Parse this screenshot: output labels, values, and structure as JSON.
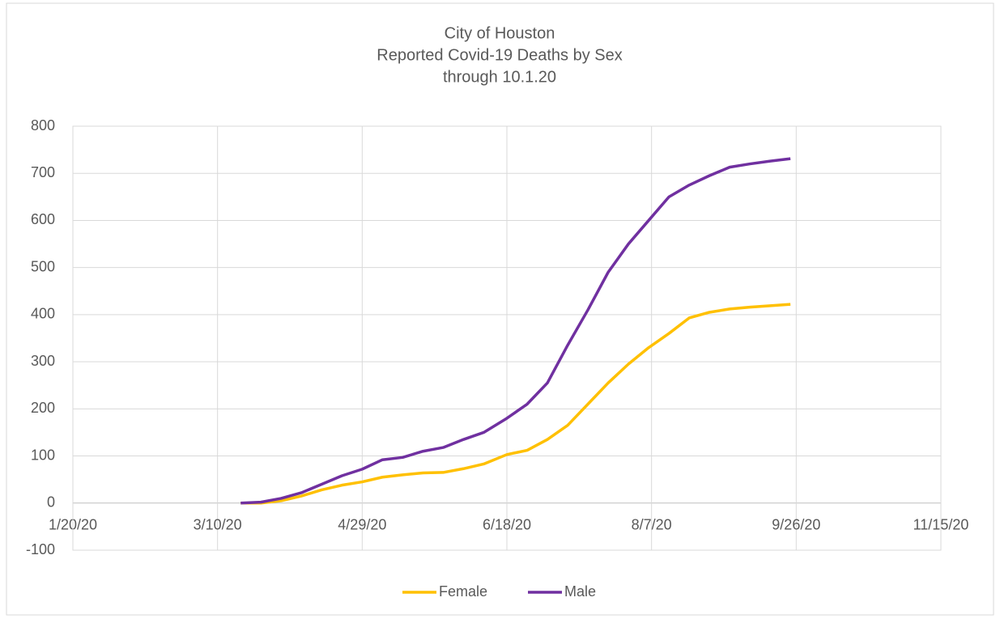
{
  "chart_data": {
    "type": "line",
    "title": [
      "City of Houston",
      "Reported Covid-19 Deaths by Sex",
      "through 10.1.20"
    ],
    "x": [
      "3/18/20",
      "3/25/20",
      "4/1/20",
      "4/8/20",
      "4/15/20",
      "4/22/20",
      "4/29/20",
      "5/6/20",
      "5/13/20",
      "5/20/20",
      "5/27/20",
      "6/3/20",
      "6/10/20",
      "6/18/20",
      "6/25/20",
      "7/2/20",
      "7/9/20",
      "7/16/20",
      "7/23/20",
      "7/30/20",
      "8/6/20",
      "8/13/20",
      "8/20/20",
      "8/27/20",
      "9/3/20",
      "9/10/20",
      "9/17/20",
      "9/24/20"
    ],
    "series": [
      {
        "name": "Female",
        "color": "#ffc000",
        "values": [
          0,
          0,
          5,
          15,
          28,
          38,
          45,
          55,
          60,
          64,
          65,
          73,
          83,
          103,
          112,
          135,
          165,
          210,
          255,
          295,
          330,
          360,
          393,
          405,
          412,
          416,
          419,
          422
        ]
      },
      {
        "name": "Male",
        "color": "#7030a0",
        "values": [
          0,
          2,
          10,
          22,
          40,
          58,
          72,
          92,
          97,
          110,
          118,
          135,
          150,
          180,
          210,
          255,
          335,
          410,
          490,
          550,
          600,
          650,
          675,
          695,
          713,
          720,
          726,
          731
        ]
      }
    ],
    "xlim": [
      "1/20/20",
      "11/15/20"
    ],
    "xticks": [
      "1/20/20",
      "3/10/20",
      "4/29/20",
      "6/18/20",
      "8/7/20",
      "9/26/20",
      "11/15/20"
    ],
    "ylim": [
      -100,
      800
    ],
    "yticks": [
      -100,
      0,
      100,
      200,
      300,
      400,
      500,
      600,
      700,
      800
    ],
    "grid": true,
    "legend": "bottom"
  }
}
